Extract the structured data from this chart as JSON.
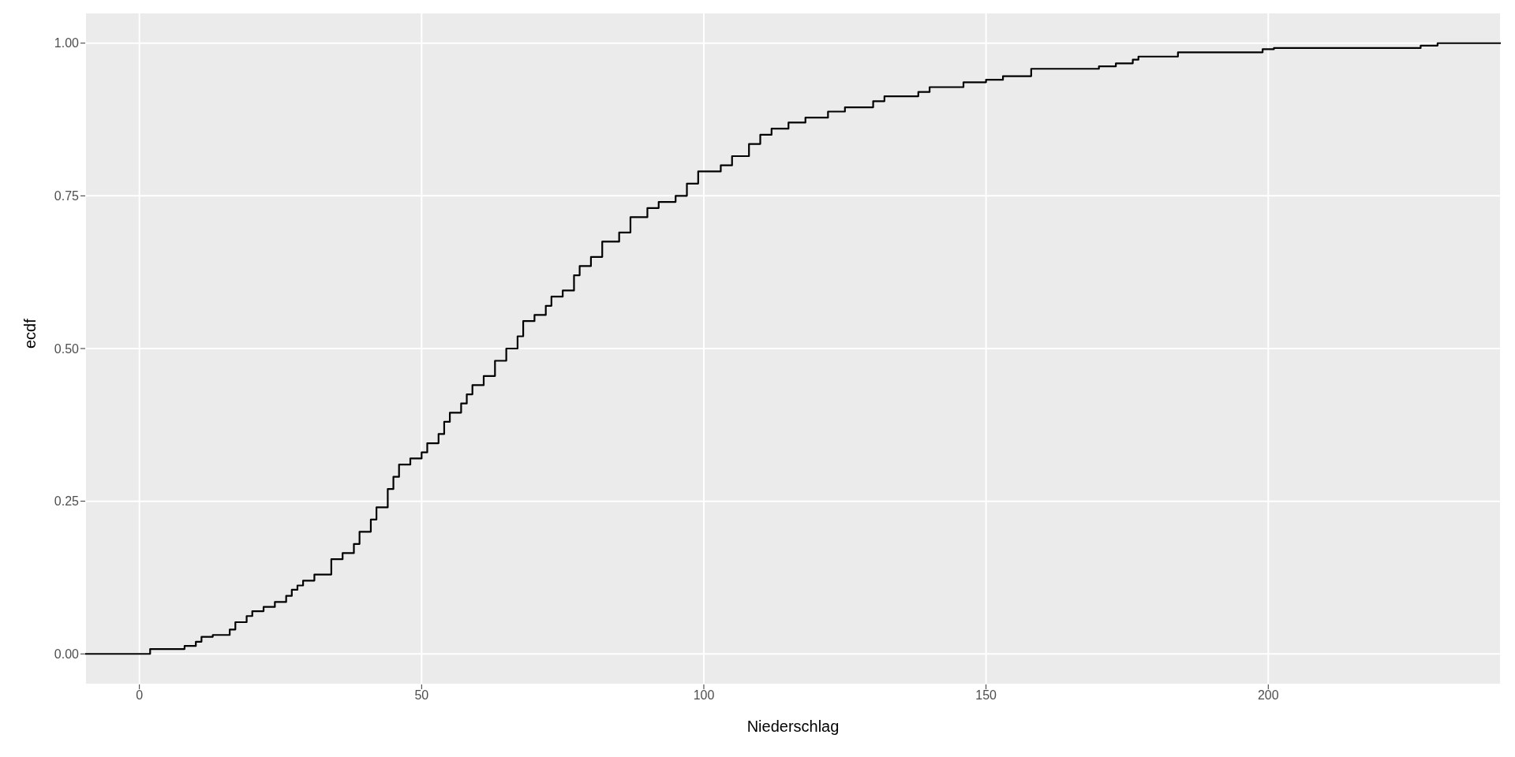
{
  "chart_data": {
    "type": "step",
    "xlabel": "Niederschlag",
    "ylabel": "ecdf",
    "color": "#000000",
    "x": [
      -9.6,
      1.9,
      8,
      10,
      11,
      13,
      16,
      17,
      19,
      20,
      22,
      24,
      26,
      27,
      28,
      29,
      31,
      34,
      36,
      38,
      39,
      41,
      42,
      44,
      45,
      46,
      48,
      50,
      51,
      53,
      54,
      55,
      57,
      58,
      59,
      61,
      63,
      65,
      67,
      68,
      70,
      72,
      73,
      75,
      77,
      78,
      80,
      82,
      85,
      87,
      90,
      92,
      95,
      97,
      99,
      103,
      105,
      108,
      110,
      112,
      115,
      118,
      122,
      125,
      130,
      132,
      138,
      140,
      146,
      150,
      153,
      158,
      170,
      173,
      176,
      177,
      184,
      199,
      201,
      227,
      230,
      241.2
    ],
    "values": [
      0,
      0.008,
      0.013,
      0.02,
      0.028,
      0.031,
      0.04,
      0.052,
      0.062,
      0.07,
      0.077,
      0.085,
      0.095,
      0.105,
      0.112,
      0.12,
      0.13,
      0.155,
      0.165,
      0.18,
      0.2,
      0.22,
      0.24,
      0.27,
      0.29,
      0.31,
      0.32,
      0.33,
      0.345,
      0.36,
      0.38,
      0.395,
      0.41,
      0.425,
      0.44,
      0.455,
      0.48,
      0.5,
      0.52,
      0.545,
      0.555,
      0.57,
      0.585,
      0.595,
      0.62,
      0.635,
      0.65,
      0.675,
      0.69,
      0.715,
      0.73,
      0.74,
      0.75,
      0.77,
      0.79,
      0.8,
      0.815,
      0.835,
      0.85,
      0.86,
      0.87,
      0.878,
      0.888,
      0.895,
      0.905,
      0.913,
      0.92,
      0.928,
      0.936,
      0.94,
      0.946,
      0.958,
      0.962,
      0.967,
      0.973,
      0.978,
      0.985,
      0.99,
      0.992,
      0.996,
      1,
      1
    ],
    "xlim": [
      -9.6,
      241.2
    ],
    "xticks": [
      0,
      50,
      100,
      150,
      200
    ],
    "ylim": [
      -0.05,
      1.05
    ],
    "yticks": [
      {
        "value": 0,
        "label": "0.00"
      },
      {
        "value": 0.25,
        "label": "0.25"
      },
      {
        "value": 0.5,
        "label": "0.50"
      },
      {
        "value": 0.75,
        "label": "0.75"
      },
      {
        "value": 1,
        "label": "1.00"
      }
    ],
    "grid": true,
    "marker": "none",
    "line_style": "solid"
  }
}
